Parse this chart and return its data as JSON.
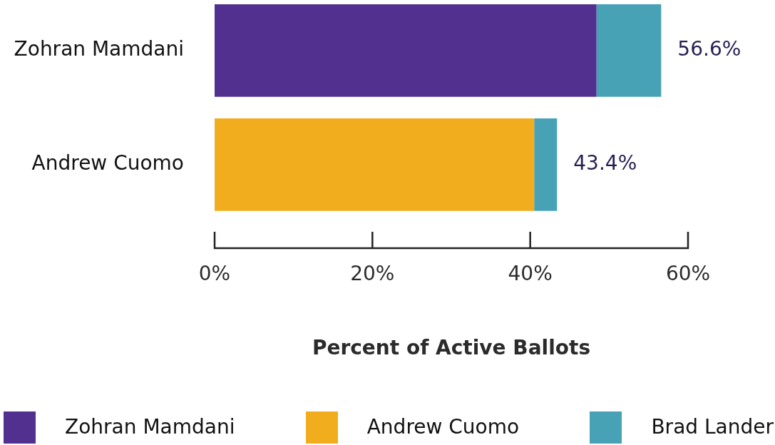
{
  "chart_data": {
    "type": "bar",
    "orientation": "horizontal",
    "stacked": true,
    "xlabel": "Percent of Active Ballots",
    "categories": [
      "Zohran Mamdani",
      "Andrew Cuomo"
    ],
    "series": [
      {
        "name": "Zohran Mamdani",
        "color": "#52308f",
        "values": [
          48.4,
          null
        ]
      },
      {
        "name": "Andrew Cuomo",
        "color": "#f2ad1f",
        "values": [
          null,
          40.5
        ]
      },
      {
        "name": "Brad Lander",
        "color": "#48a2b5",
        "values": [
          8.2,
          2.9
        ]
      }
    ],
    "xlim": [
      0,
      60
    ],
    "xticks": [
      {
        "value": 0,
        "label": "0%"
      },
      {
        "value": 20,
        "label": "20%"
      },
      {
        "value": 40,
        "label": "40%"
      },
      {
        "value": 60,
        "label": "60%"
      }
    ],
    "totals": [
      "56.6%",
      "43.4%"
    ],
    "legend": "bottom"
  }
}
